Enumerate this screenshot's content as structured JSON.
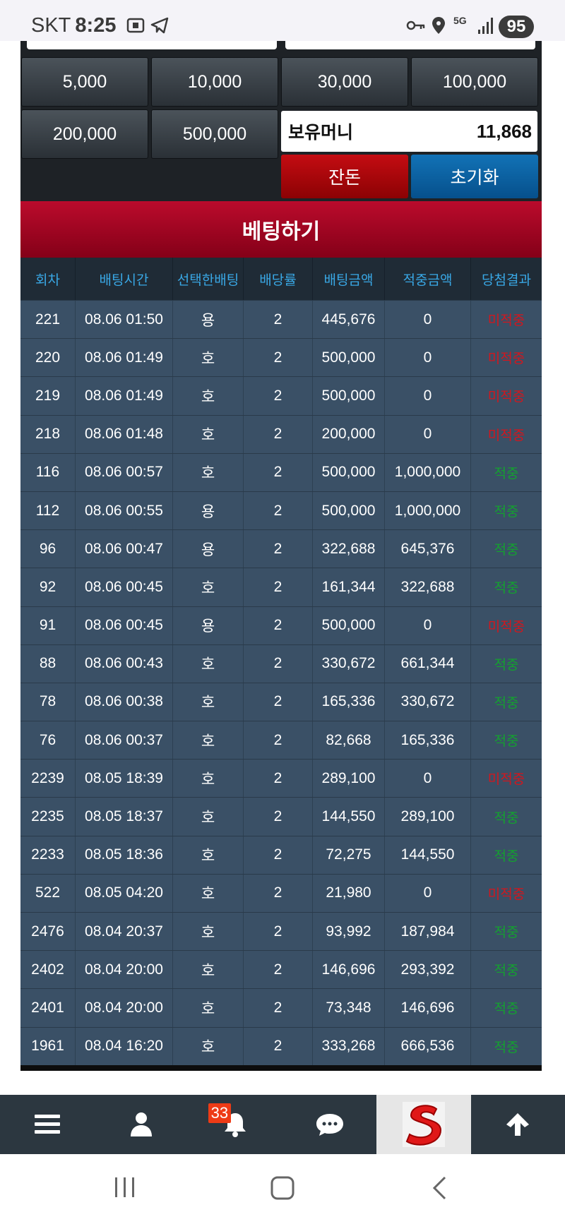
{
  "status_bar": {
    "carrier": "SKT",
    "time": "8:25",
    "network": "5G",
    "battery": "95"
  },
  "chips": [
    "5,000",
    "10,000",
    "30,000",
    "100,000",
    "200,000",
    "500,000"
  ],
  "money": {
    "label": "보유머니",
    "value": "11,868"
  },
  "buttons": {
    "balance": "잔돈",
    "reset": "초기화"
  },
  "banner": {
    "title": "베팅하기"
  },
  "table": {
    "headers": [
      "회차",
      "배팅시간",
      "선택한배팅",
      "배당률",
      "배팅금액",
      "적중금액",
      "당첨결과"
    ],
    "rows": [
      [
        "221",
        "08.06 01:50",
        "용",
        "2",
        "445,676",
        "0",
        "미적중"
      ],
      [
        "220",
        "08.06 01:49",
        "호",
        "2",
        "500,000",
        "0",
        "미적중"
      ],
      [
        "219",
        "08.06 01:49",
        "호",
        "2",
        "500,000",
        "0",
        "미적중"
      ],
      [
        "218",
        "08.06 01:48",
        "호",
        "2",
        "200,000",
        "0",
        "미적중"
      ],
      [
        "116",
        "08.06 00:57",
        "호",
        "2",
        "500,000",
        "1,000,000",
        "적중"
      ],
      [
        "112",
        "08.06 00:55",
        "용",
        "2",
        "500,000",
        "1,000,000",
        "적중"
      ],
      [
        "96",
        "08.06 00:47",
        "용",
        "2",
        "322,688",
        "645,376",
        "적중"
      ],
      [
        "92",
        "08.06 00:45",
        "호",
        "2",
        "161,344",
        "322,688",
        "적중"
      ],
      [
        "91",
        "08.06 00:45",
        "용",
        "2",
        "500,000",
        "0",
        "미적중"
      ],
      [
        "88",
        "08.06 00:43",
        "호",
        "2",
        "330,672",
        "661,344",
        "적중"
      ],
      [
        "78",
        "08.06 00:38",
        "호",
        "2",
        "165,336",
        "330,672",
        "적중"
      ],
      [
        "76",
        "08.06 00:37",
        "호",
        "2",
        "82,668",
        "165,336",
        "적중"
      ],
      [
        "2239",
        "08.05 18:39",
        "호",
        "2",
        "289,100",
        "0",
        "미적중"
      ],
      [
        "2235",
        "08.05 18:37",
        "호",
        "2",
        "144,550",
        "289,100",
        "적중"
      ],
      [
        "2233",
        "08.05 18:36",
        "호",
        "2",
        "72,275",
        "144,550",
        "적중"
      ],
      [
        "522",
        "08.05 04:20",
        "호",
        "2",
        "21,980",
        "0",
        "미적중"
      ],
      [
        "2476",
        "08.04 20:37",
        "호",
        "2",
        "93,992",
        "187,984",
        "적중"
      ],
      [
        "2402",
        "08.04 20:00",
        "호",
        "2",
        "146,696",
        "293,392",
        "적중"
      ],
      [
        "2401",
        "08.04 20:00",
        "호",
        "2",
        "73,348",
        "146,696",
        "적중"
      ],
      [
        "1961",
        "08.04 16:20",
        "호",
        "2",
        "333,268",
        "666,536",
        "적중"
      ]
    ]
  },
  "bottom_nav": {
    "items": [
      "menu-icon",
      "user-icon",
      "bell-icon",
      "chat-icon",
      "logo",
      "arrow-up-icon"
    ],
    "notification_count": "33"
  },
  "colors": {
    "lose": "#d3161d",
    "win": "#14a12f",
    "header_text": "#39a8e6",
    "banner": "#a8001f"
  }
}
